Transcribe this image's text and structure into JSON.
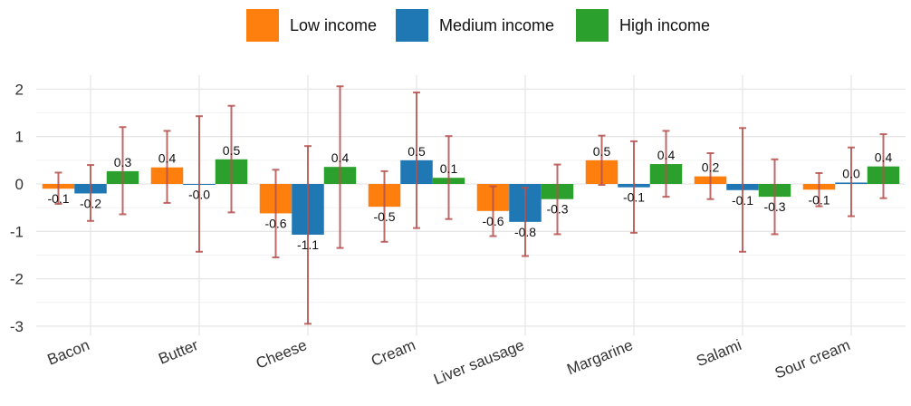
{
  "chart_data": {
    "type": "bar",
    "title": "",
    "xlabel": "",
    "ylabel": "",
    "ylim": [
      -3.2,
      2.3
    ],
    "yticks": [
      -3,
      -2,
      -1,
      0,
      1,
      2
    ],
    "grid": true,
    "legend_position": "top",
    "categories": [
      "Bacon",
      "Butter",
      "Cheese",
      "Cream",
      "Liver sausage",
      "Margarine",
      "Salami",
      "Sour cream"
    ],
    "series": [
      {
        "name": "Low income",
        "color": "#ff7f0e",
        "values": [
          -0.1,
          0.35,
          -0.62,
          -0.48,
          -0.57,
          0.5,
          0.16,
          -0.12
        ],
        "labels": [
          "-0.1",
          "0.4",
          "-0.6",
          "-0.5",
          "-0.6",
          "0.5",
          "0.2",
          "-0.1"
        ],
        "err_low": [
          -0.42,
          -0.4,
          -1.55,
          -1.22,
          -1.1,
          -0.02,
          -0.32,
          -0.47
        ],
        "err_high": [
          0.24,
          1.12,
          0.3,
          0.27,
          -0.05,
          1.02,
          0.65,
          0.23
        ]
      },
      {
        "name": "Medium income",
        "color": "#1f77b4",
        "values": [
          -0.2,
          -0.01,
          -1.07,
          0.5,
          -0.8,
          -0.07,
          -0.13,
          0.03
        ],
        "labels": [
          "-0.2",
          "-0.0",
          "-1.1",
          "0.5",
          "-0.8",
          "-0.1",
          "-0.1",
          "0.0"
        ],
        "err_low": [
          -0.78,
          -1.43,
          -2.95,
          -0.93,
          -1.52,
          -1.03,
          -1.43,
          -0.68
        ],
        "err_high": [
          0.4,
          1.43,
          0.8,
          1.93,
          -0.08,
          0.9,
          1.18,
          0.77
        ]
      },
      {
        "name": "High income",
        "color": "#2ca02c",
        "values": [
          0.27,
          0.52,
          0.36,
          0.13,
          -0.32,
          0.42,
          -0.27,
          0.37
        ],
        "labels": [
          "0.3",
          "0.5",
          "0.4",
          "0.1",
          "-0.3",
          "0.4",
          "-0.3",
          "0.4"
        ],
        "err_low": [
          -0.64,
          -0.6,
          -1.35,
          -0.74,
          -1.06,
          -0.27,
          -1.06,
          -0.3
        ],
        "err_high": [
          1.2,
          1.65,
          2.06,
          1.01,
          0.41,
          1.12,
          0.52,
          1.05
        ]
      }
    ]
  }
}
